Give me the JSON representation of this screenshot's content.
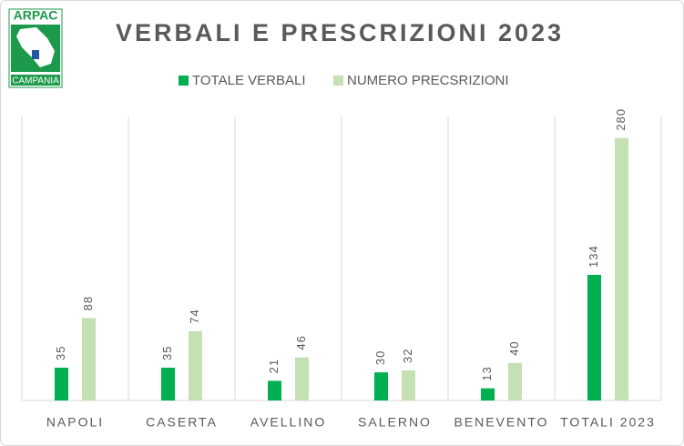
{
  "logo": {
    "top": "ARPAC",
    "bottom": "CAMPANIA"
  },
  "chart_data": {
    "type": "bar",
    "title": "VERBALI E PRESCRIZIONI 2023",
    "categories": [
      "NAPOLI",
      "CASERTA",
      "AVELLINO",
      "SALERNO",
      "BENEVENTO",
      "TOTALI 2023"
    ],
    "series": [
      {
        "name": "TOTALE VERBALI",
        "color": "#00b050",
        "values": [
          35,
          35,
          21,
          30,
          13,
          134
        ]
      },
      {
        "name": "NUMERO PRECSRIZIONI",
        "color": "#c5e0b3",
        "values": [
          88,
          74,
          46,
          32,
          40,
          280
        ]
      }
    ],
    "ylim": [
      0,
      300
    ],
    "legend": "top",
    "category_grid": true
  }
}
